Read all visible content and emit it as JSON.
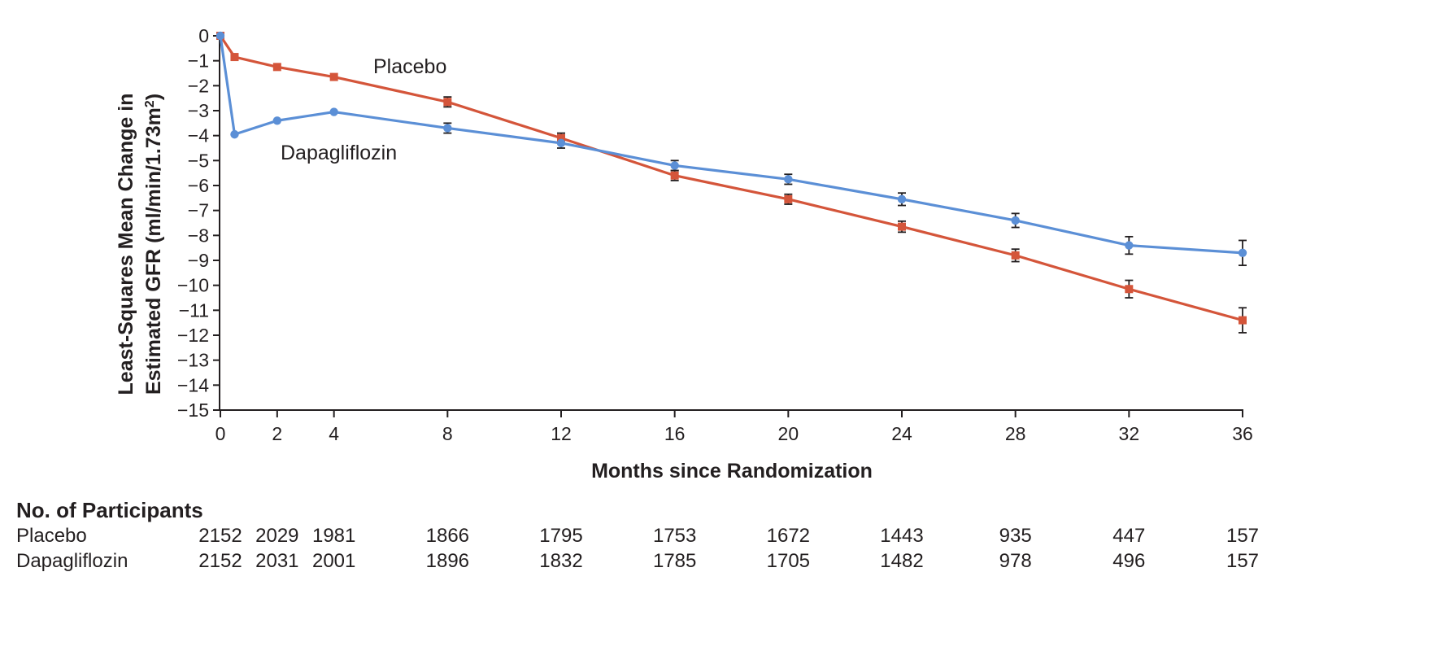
{
  "chart_data": {
    "type": "line",
    "title": "",
    "xlabel": "Months since Randomization",
    "ylabel_line1": "Least-Squares Mean Change in",
    "ylabel_line2": "Estimated GFR (ml/min/1.73m",
    "ylabel_sup": "2",
    "ylabel_end": ")",
    "xlim": [
      0,
      36
    ],
    "ylim": [
      -15,
      0
    ],
    "x_ticks": [
      0,
      2,
      4,
      8,
      12,
      16,
      20,
      24,
      28,
      32,
      36
    ],
    "y_ticks": [
      0,
      -1,
      -2,
      -3,
      -4,
      -5,
      -6,
      -7,
      -8,
      -9,
      -10,
      -11,
      -12,
      -13,
      -14,
      -15
    ],
    "y_tick_labels": [
      "0",
      "−1",
      "−2",
      "−3",
      "−4",
      "−5",
      "−6",
      "−7",
      "−8",
      "−9",
      "−10",
      "−11",
      "−12",
      "−13",
      "−14",
      "−15"
    ],
    "grid": false,
    "series": [
      {
        "name": "Placebo",
        "color": "#d4553a",
        "marker": "square",
        "points": [
          {
            "x": 0,
            "y": 0
          },
          {
            "x": 0.5,
            "y": -0.85
          },
          {
            "x": 2,
            "y": -1.25
          },
          {
            "x": 4,
            "y": -1.65
          },
          {
            "x": 8,
            "y": -2.65,
            "err": 0.2
          },
          {
            "x": 12,
            "y": -4.1,
            "err": 0.2
          },
          {
            "x": 16,
            "y": -5.6,
            "err": 0.2
          },
          {
            "x": 20,
            "y": -6.55,
            "err": 0.2
          },
          {
            "x": 24,
            "y": -7.65,
            "err": 0.22
          },
          {
            "x": 28,
            "y": -8.8,
            "err": 0.25
          },
          {
            "x": 32,
            "y": -10.15,
            "err": 0.35
          },
          {
            "x": 36,
            "y": -11.4,
            "err": 0.5
          }
        ]
      },
      {
        "name": "Dapagliflozin",
        "color": "#5b8fd6",
        "marker": "circle",
        "points": [
          {
            "x": 0,
            "y": 0
          },
          {
            "x": 0.5,
            "y": -3.95
          },
          {
            "x": 2,
            "y": -3.4
          },
          {
            "x": 4,
            "y": -3.05
          },
          {
            "x": 8,
            "y": -3.7,
            "err": 0.2
          },
          {
            "x": 12,
            "y": -4.3,
            "err": 0.2
          },
          {
            "x": 16,
            "y": -5.2,
            "err": 0.2
          },
          {
            "x": 20,
            "y": -5.75,
            "err": 0.2
          },
          {
            "x": 24,
            "y": -6.55,
            "err": 0.25
          },
          {
            "x": 28,
            "y": -7.4,
            "err": 0.28
          },
          {
            "x": 32,
            "y": -8.4,
            "err": 0.35
          },
          {
            "x": 36,
            "y": -8.7,
            "err": 0.5
          }
        ]
      }
    ],
    "annotations": [
      {
        "text": "Placebo",
        "series": "Placebo"
      },
      {
        "text": "Dapagliflozin",
        "series": "Dapagliflozin"
      }
    ]
  },
  "at_risk": {
    "title": "No. of Participants",
    "months": [
      0,
      2,
      4,
      8,
      12,
      16,
      20,
      24,
      28,
      32,
      36
    ],
    "rows": [
      {
        "label": "Placebo",
        "values": [
          "2152",
          "2029",
          "1981",
          "1866",
          "1795",
          "1753",
          "1672",
          "1443",
          "935",
          "447",
          "157"
        ]
      },
      {
        "label": "Dapagliflozin",
        "values": [
          "2152",
          "2031",
          "2001",
          "1896",
          "1832",
          "1785",
          "1705",
          "1482",
          "978",
          "496",
          "157"
        ]
      }
    ]
  }
}
